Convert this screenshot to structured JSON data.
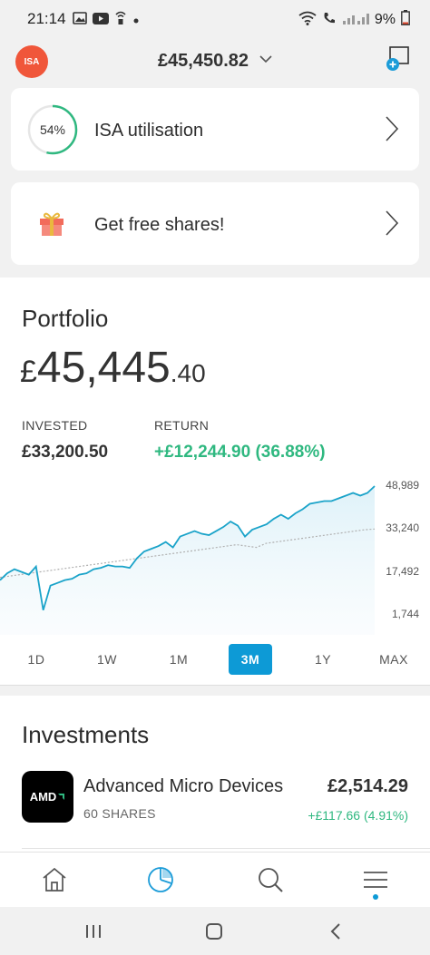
{
  "status": {
    "time": "21:14",
    "battery": "9%"
  },
  "header": {
    "account_badge": "ISA",
    "balance": "£45,450.82"
  },
  "cards": {
    "isa": {
      "percent": "54%",
      "percent_value": 0.54,
      "label": "ISA utilisation"
    },
    "gift": {
      "label": "Get free shares!"
    }
  },
  "portfolio": {
    "title": "Portfolio",
    "value_currency": "£",
    "value_whole": "45,445",
    "value_decimal": ".40",
    "invested_label": "INVESTED",
    "invested_value": "£33,200.50",
    "return_label": "RETURN",
    "return_value": "+£12,244.90 (36.88%)"
  },
  "chart_data": {
    "type": "line",
    "y_ticks": [
      "48,989",
      "33,240",
      "17,492",
      "1,744"
    ],
    "y_tick_values": [
      48989,
      33240,
      17492,
      1744
    ],
    "ylim": [
      1744,
      48989
    ],
    "series": [
      {
        "style": "solid",
        "color": "#1aa3c9",
        "values": [
          14500,
          17000,
          18500,
          17500,
          16500,
          19500,
          3500,
          12500,
          13500,
          14500,
          15000,
          16500,
          17000,
          18500,
          19000,
          20000,
          19500,
          19500,
          19000,
          22500,
          25000,
          26000,
          27000,
          28500,
          26500,
          30500,
          31500,
          32500,
          31500,
          31000,
          32500,
          34000,
          36000,
          34500,
          30500,
          33000,
          34000,
          35000,
          37000,
          38500,
          37000,
          39000,
          40500,
          42500,
          43000,
          43500,
          43500,
          44500,
          45500,
          46500,
          45500,
          46500,
          48989
        ]
      },
      {
        "style": "dashed",
        "color": "#b0b0b0",
        "values": [
          15500,
          16000,
          16500,
          17000,
          17500,
          18000,
          18500,
          19000,
          19500,
          20000,
          20500,
          21000,
          21500,
          22000,
          22500,
          23000,
          23500,
          24000,
          24500,
          25000,
          25500,
          26000,
          26500,
          27000,
          27500,
          27000,
          26500,
          28000,
          28500,
          29000,
          29500,
          30000,
          30500,
          31000,
          31500,
          32000,
          32500,
          33000,
          33240
        ]
      }
    ]
  },
  "ranges": {
    "items": [
      "1D",
      "1W",
      "1M",
      "3M",
      "1Y",
      "MAX"
    ],
    "active": "3M"
  },
  "investments": {
    "title": "Investments",
    "items": [
      {
        "logo_text": "AMD",
        "name": "Advanced Micro Devices",
        "shares": "60 SHARES",
        "value": "£2,514.29",
        "change": "+£117.66 (4.91%)"
      }
    ]
  },
  "icons": {
    "tab_home": "home-icon",
    "tab_portfolio": "pie-chart-icon",
    "tab_search": "search-icon",
    "tab_menu": "menu-icon"
  }
}
